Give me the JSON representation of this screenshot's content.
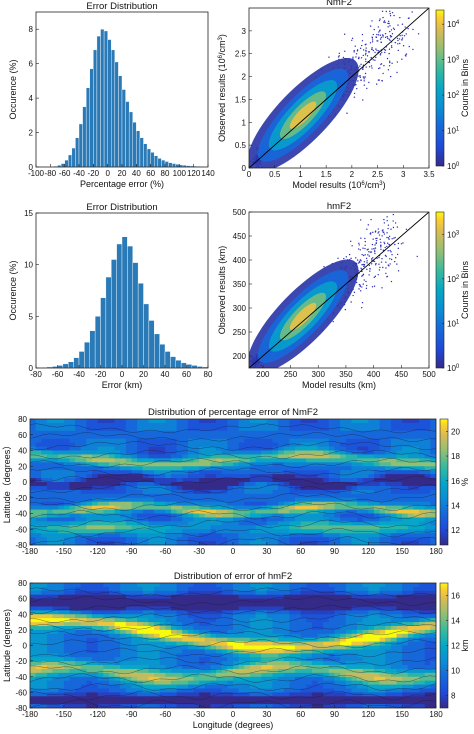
{
  "chart_data": [
    {
      "type": "bar",
      "title": "Error Distribution",
      "xlabel": "Percentage error (%)",
      "ylabel": "Occurence (%)",
      "xlim": [
        -100,
        140
      ],
      "ylim": [
        0,
        9
      ],
      "xticks": [
        -100,
        -80,
        -60,
        -40,
        -20,
        0,
        20,
        40,
        60,
        80,
        100,
        120,
        140
      ],
      "yticks": [
        0,
        2,
        4,
        6,
        8
      ],
      "bin_width": 5,
      "bin_centers": [
        -77.5,
        -72.5,
        -67.5,
        -62.5,
        -57.5,
        -52.5,
        -47.5,
        -42.5,
        -37.5,
        -32.5,
        -27.5,
        -22.5,
        -17.5,
        -12.5,
        -7.5,
        -2.5,
        2.5,
        7.5,
        12.5,
        17.5,
        22.5,
        27.5,
        32.5,
        37.5,
        42.5,
        47.5,
        52.5,
        57.5,
        62.5,
        67.5,
        72.5,
        77.5,
        82.5,
        87.5,
        92.5,
        97.5,
        102.5,
        107.5,
        112.5,
        117.5,
        122.5,
        127.5,
        132.5,
        137.5
      ],
      "values": [
        0.02,
        0.05,
        0.1,
        0.2,
        0.4,
        0.7,
        1.1,
        1.7,
        2.5,
        3.5,
        4.6,
        5.7,
        6.8,
        7.6,
        8.0,
        7.9,
        7.4,
        6.8,
        6.1,
        5.3,
        4.5,
        3.8,
        3.2,
        2.6,
        2.1,
        1.7,
        1.35,
        1.05,
        0.85,
        0.65,
        0.5,
        0.4,
        0.32,
        0.25,
        0.2,
        0.16,
        0.12,
        0.1,
        0.08,
        0.06,
        0.05,
        0.04,
        0.03,
        0.02
      ],
      "bar_color": "#2a7ab8"
    },
    {
      "type": "heatmap",
      "title": "NmF2",
      "xlabel": "Model results (10",
      "xlabel_sup": "6",
      "xlabel_tail": "/cm",
      "xlabel_sup2": "3",
      "xlabel_end": ")",
      "ylabel": "Observed results (10",
      "ylabel_sup": "6",
      "ylabel_tail": "/cm",
      "ylabel_sup2": "3",
      "ylabel_end": ")",
      "xlim": [
        0,
        3.5
      ],
      "ylim": [
        0,
        3.5
      ],
      "xticks": [
        "0",
        "0.5",
        "1",
        "1.5",
        "2",
        "2.5",
        "3",
        "3.5"
      ],
      "yticks": [
        "0",
        "0.5",
        "1",
        "1.5",
        "2",
        "2.5",
        "3"
      ],
      "colorbar_label": "Counts in Bins",
      "colorbar_ticks": [
        "0",
        "1",
        "2",
        "3",
        "4"
      ],
      "colorbar_log": true,
      "colorbar_range": [
        0,
        4.4
      ],
      "reference_line": "y = x"
    },
    {
      "type": "bar",
      "title": "Error Distribution",
      "xlabel": "Error (km)",
      "ylabel": "Occurence (%)",
      "xlim": [
        -80,
        80
      ],
      "ylim": [
        0,
        15
      ],
      "xticks": [
        -80,
        -60,
        -40,
        -20,
        0,
        20,
        40,
        60,
        80
      ],
      "yticks": [
        0,
        5,
        10,
        15
      ],
      "bin_width": 5,
      "bin_centers": [
        -72.5,
        -67.5,
        -62.5,
        -57.5,
        -52.5,
        -47.5,
        -42.5,
        -37.5,
        -32.5,
        -27.5,
        -22.5,
        -17.5,
        -12.5,
        -7.5,
        -2.5,
        2.5,
        7.5,
        12.5,
        17.5,
        22.5,
        27.5,
        32.5,
        37.5,
        42.5,
        47.5,
        52.5,
        57.5,
        62.5,
        67.5,
        72.5,
        77.5
      ],
      "values": [
        0.05,
        0.1,
        0.15,
        0.25,
        0.4,
        0.6,
        1.0,
        1.6,
        2.5,
        3.6,
        5.0,
        6.8,
        8.8,
        10.5,
        12.0,
        12.7,
        11.8,
        10.2,
        8.2,
        6.2,
        4.6,
        3.3,
        2.3,
        1.6,
        1.1,
        0.75,
        0.5,
        0.35,
        0.25,
        0.15,
        0.1
      ],
      "bar_color": "#2a7ab8"
    },
    {
      "type": "heatmap",
      "title": "hmF2",
      "xlabel": "Model results (km)",
      "ylabel": "Observed results (km)",
      "xlim": [
        175,
        500
      ],
      "ylim": [
        175,
        500
      ],
      "xticks": [
        "200",
        "250",
        "300",
        "350",
        "400",
        "450",
        "500"
      ],
      "yticks": [
        "200",
        "250",
        "300",
        "350",
        "400",
        "450",
        "500"
      ],
      "colorbar_label": "Counts in Bins",
      "colorbar_ticks": [
        "0",
        "1",
        "2",
        "3"
      ],
      "colorbar_log": true,
      "colorbar_range": [
        0,
        3.5
      ],
      "reference_line": "y = x"
    },
    {
      "type": "heatmap",
      "title": "Distribution of percentage error of NmF2",
      "xlabel": "",
      "ylabel": "Latitude（degrees）",
      "xlim": [
        -180,
        180
      ],
      "ylim": [
        -80,
        80
      ],
      "xticks": [
        "-180",
        "-150",
        "-120",
        "-90",
        "-60",
        "-30",
        "0",
        "30",
        "60",
        "90",
        "120",
        "150",
        "180"
      ],
      "yticks": [
        "-80",
        "-60",
        "-40",
        "-20",
        "0",
        "20",
        "40",
        "60",
        "80"
      ],
      "colorbar_label": "%",
      "colorbar_ticks": [
        "12",
        "14",
        "16",
        "18",
        "20"
      ],
      "colorbar_range": [
        10.8,
        21
      ],
      "contours": true
    },
    {
      "type": "heatmap",
      "title": "Distribution of error of hmF2",
      "xlabel": "Longitude (degrees)",
      "ylabel": "Latitude (degrees)",
      "xlim": [
        -180,
        180
      ],
      "ylim": [
        -80,
        80
      ],
      "xticks": [
        "-180",
        "-150",
        "-120",
        "-90",
        "-60",
        "-30",
        "0",
        "30",
        "60",
        "90",
        "120",
        "150",
        "180"
      ],
      "yticks": [
        "-80",
        "-60",
        "-40",
        "-20",
        "0",
        "20",
        "40",
        "60",
        "80"
      ],
      "colorbar_label": "km",
      "colorbar_ticks": [
        "8",
        "10",
        "12",
        "14",
        "16"
      ],
      "colorbar_range": [
        7,
        17
      ],
      "contours": true
    }
  ]
}
